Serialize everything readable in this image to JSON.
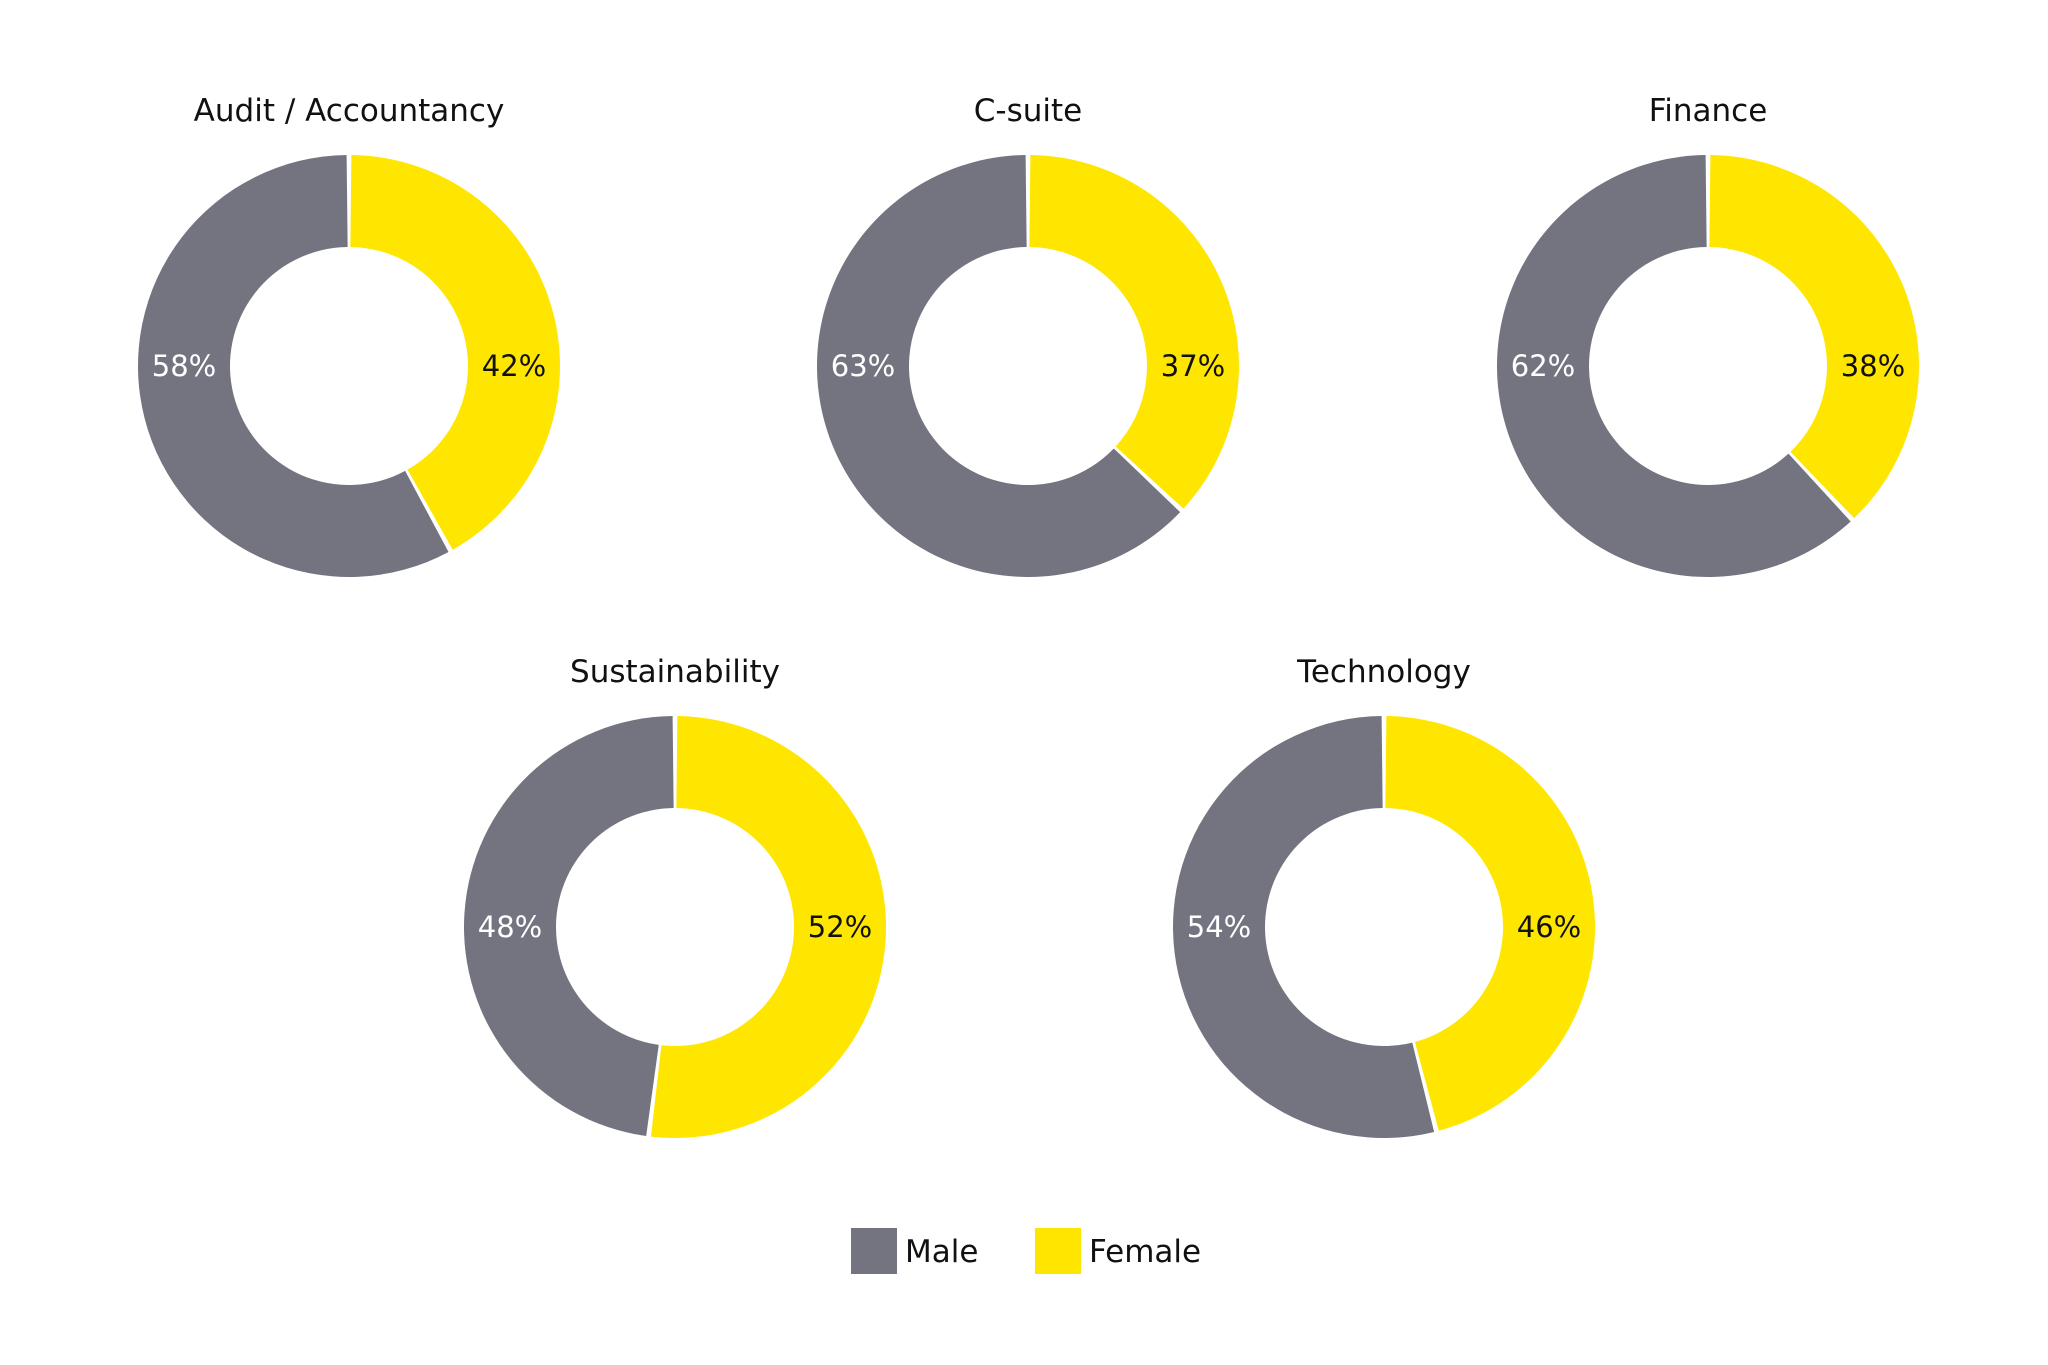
{
  "chart_data": {
    "type": "pie",
    "variant": "donut",
    "colors": {
      "Male": "#747480",
      "Female": "#FFE600"
    },
    "legend": {
      "position": "bottom",
      "entries": [
        "Male",
        "Female"
      ]
    },
    "charts": [
      {
        "title": "Audit / Accountancy",
        "values": {
          "Male": 58,
          "Female": 42
        },
        "labels": {
          "Male": "58%",
          "Female": "42%"
        }
      },
      {
        "title": "C-suite",
        "values": {
          "Male": 63,
          "Female": 37
        },
        "labels": {
          "Male": "63%",
          "Female": "37%"
        }
      },
      {
        "title": "Finance",
        "values": {
          "Male": 62,
          "Female": 38
        },
        "labels": {
          "Male": "62%",
          "Female": "38%"
        }
      },
      {
        "title": "Sustainability",
        "values": {
          "Male": 48,
          "Female": 52
        },
        "labels": {
          "Male": "48%",
          "Female": "52%"
        }
      },
      {
        "title": "Technology",
        "values": {
          "Male": 54,
          "Female": 46
        },
        "labels": {
          "Male": "54%",
          "Female": "46%"
        }
      }
    ]
  }
}
